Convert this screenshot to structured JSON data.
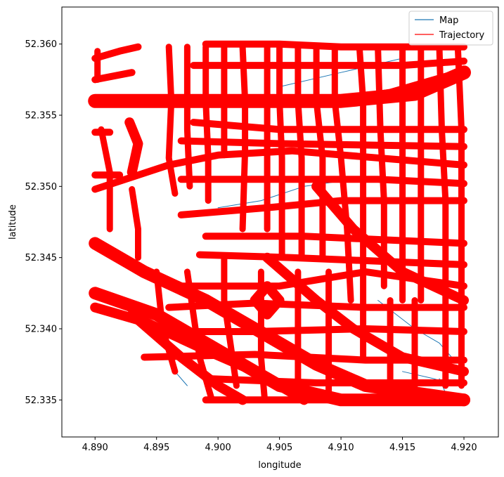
{
  "chart_data": {
    "type": "line",
    "title": "",
    "xlabel": "longitude",
    "ylabel": "latitude",
    "xlim": [
      4.8873,
      4.9228
    ],
    "ylim": [
      52.3324,
      52.3626
    ],
    "x_ticks": [
      4.89,
      4.895,
      4.9,
      4.905,
      4.91,
      4.915,
      4.92
    ],
    "x_tick_labels": [
      "4.890",
      "4.895",
      "4.900",
      "4.905",
      "4.910",
      "4.915",
      "4.920"
    ],
    "y_ticks": [
      52.335,
      52.34,
      52.345,
      52.35,
      52.355,
      52.36
    ],
    "y_tick_labels": [
      "52.335",
      "52.340",
      "52.345",
      "52.350",
      "52.355",
      "52.360"
    ],
    "grid": false,
    "legend_position": "top-right",
    "series": [
      {
        "name": "Map",
        "color": "#1f77b4",
        "segments": [
          [
            [
              4.9,
              52.3485
            ],
            [
              4.9035,
              52.349
            ],
            [
              4.907,
              52.35
            ],
            [
              4.911,
              52.3505
            ]
          ],
          [
            [
              4.905,
              52.357
            ],
            [
              4.91,
              52.358
            ],
            [
              4.915,
              52.359
            ]
          ],
          [
            [
              4.913,
              52.342
            ],
            [
              4.916,
              52.34
            ],
            [
              4.918,
              52.339
            ],
            [
              4.919,
              52.338
            ]
          ],
          [
            [
              4.915,
              52.337
            ],
            [
              4.9175,
              52.3365
            ],
            [
              4.9195,
              52.336
            ]
          ],
          [
            [
              4.896,
              52.338
            ],
            [
              4.8965,
              52.337
            ],
            [
              4.8975,
              52.336
            ]
          ],
          [
            [
              4.918,
              52.3365
            ],
            [
              4.9185,
              52.3355
            ],
            [
              4.9188,
              52.335
            ]
          ]
        ]
      },
      {
        "name": "Trajectory",
        "color": "#ff0000",
        "horizontal_streets": [
          [
            [
              4.89,
              52.356
            ],
            [
              4.9,
              52.356
            ],
            [
              4.91,
              52.356
            ],
            [
              4.916,
              52.3565
            ],
            [
              4.92,
              52.358
            ]
          ],
          [
            [
              4.89,
              52.3498
            ],
            [
              4.896,
              52.3515
            ],
            [
              4.9,
              52.3522
            ],
            [
              4.906,
              52.3525
            ],
            [
              4.92,
              52.3515
            ]
          ],
          [
            [
              4.897,
              52.348
            ],
            [
              4.904,
              52.3485
            ],
            [
              4.91,
              52.349
            ],
            [
              4.92,
              52.349
            ]
          ],
          [
            [
              4.899,
              52.3465
            ],
            [
              4.907,
              52.3465
            ],
            [
              4.92,
              52.346
            ]
          ],
          [
            [
              4.8985,
              52.3452
            ],
            [
              4.906,
              52.345
            ],
            [
              4.92,
              52.3445
            ]
          ],
          [
            [
              4.897,
              52.343
            ],
            [
              4.905,
              52.343
            ],
            [
              4.912,
              52.344
            ],
            [
              4.92,
              52.343
            ]
          ],
          [
            [
              4.896,
              52.3415
            ],
            [
              4.903,
              52.3418
            ],
            [
              4.912,
              52.3415
            ],
            [
              4.92,
              52.3415
            ]
          ],
          [
            [
              4.895,
              52.3398
            ],
            [
              4.903,
              52.3398
            ],
            [
              4.912,
              52.34
            ],
            [
              4.92,
              52.3398
            ]
          ],
          [
            [
              4.894,
              52.338
            ],
            [
              4.903,
              52.3382
            ],
            [
              4.912,
              52.3378
            ],
            [
              4.92,
              52.3378
            ]
          ],
          [
            [
              4.899,
              52.3365
            ],
            [
              4.908,
              52.3362
            ],
            [
              4.92,
              52.3362
            ]
          ],
          [
            [
              4.899,
              52.335
            ],
            [
              4.905,
              52.335
            ],
            [
              4.913,
              52.335
            ],
            [
              4.92,
              52.335
            ]
          ],
          [
            [
              4.899,
              52.36
            ],
            [
              4.905,
              52.36
            ],
            [
              4.91,
              52.3598
            ],
            [
              4.92,
              52.3598
            ]
          ],
          [
            [
              4.898,
              52.3585
            ],
            [
              4.905,
              52.3585
            ],
            [
              4.915,
              52.3585
            ],
            [
              4.92,
              52.3588
            ]
          ],
          [
            [
              4.898,
              52.3545
            ],
            [
              4.905,
              52.354
            ],
            [
              4.915,
              52.354
            ],
            [
              4.92,
              52.354
            ]
          ],
          [
            [
              4.897,
              52.3532
            ],
            [
              4.905,
              52.353
            ],
            [
              4.92,
              52.3528
            ]
          ],
          [
            [
              4.897,
              52.3505
            ],
            [
              4.905,
              52.3505
            ],
            [
              4.913,
              52.3505
            ],
            [
              4.92,
              52.3502
            ]
          ],
          [
            [
              4.89,
              52.3538
            ],
            [
              4.8912,
              52.3538
            ]
          ],
          [
            [
              4.89,
              52.359
            ],
            [
              4.892,
              52.3595
            ],
            [
              4.8935,
              52.3598
            ]
          ],
          [
            [
              4.89,
              52.3575
            ],
            [
              4.893,
              52.358
            ]
          ],
          [
            [
              4.89,
              52.3508
            ],
            [
              4.892,
              52.3508
            ]
          ]
        ],
        "vertical_streets": [
          [
            [
              4.896,
              52.3598
            ],
            [
              4.8962,
              52.356
            ],
            [
              4.896,
              52.352
            ],
            [
              4.8965,
              52.3495
            ]
          ],
          [
            [
              4.8975,
              52.3598
            ],
            [
              4.8975,
              52.354
            ],
            [
              4.8977,
              52.35
            ]
          ],
          [
            [
              4.899,
              52.3598
            ],
            [
              4.899,
              52.356
            ],
            [
              4.8992,
              52.352
            ],
            [
              4.8992,
              52.349
            ]
          ],
          [
            [
              4.9005,
              52.3598
            ],
            [
              4.9005,
              52.356
            ],
            [
              4.9005,
              52.3522
            ]
          ],
          [
            [
              4.902,
              52.3598
            ],
            [
              4.9022,
              52.356
            ],
            [
              4.9022,
              52.3525
            ],
            [
              4.902,
              52.347
            ]
          ],
          [
            [
              4.904,
              52.3598
            ],
            [
              4.904,
              52.356
            ],
            [
              4.904,
              52.352
            ],
            [
              4.904,
              52.347
            ]
          ],
          [
            [
              4.905,
              52.3598
            ],
            [
              4.905,
              52.356
            ],
            [
              4.9052,
              52.352
            ],
            [
              4.9052,
              52.345
            ]
          ],
          [
            [
              4.9065,
              52.3598
            ],
            [
              4.9065,
              52.356
            ],
            [
              4.9068,
              52.352
            ],
            [
              4.9068,
              52.345
            ]
          ],
          [
            [
              4.908,
              52.3598
            ],
            [
              4.908,
              52.356
            ],
            [
              4.9085,
              52.352
            ],
            [
              4.9085,
              52.345
            ]
          ],
          [
            [
              4.9095,
              52.3598
            ],
            [
              4.9095,
              52.356
            ],
            [
              4.91,
              52.352
            ],
            [
              4.9105,
              52.347
            ],
            [
              4.9108,
              52.342
            ]
          ],
          [
            [
              4.9115,
              52.3598
            ],
            [
              4.9118,
              52.356
            ],
            [
              4.9118,
              52.35
            ],
            [
              4.9118,
              52.344
            ],
            [
              4.9118,
              52.338
            ]
          ],
          [
            [
              4.913,
              52.3598
            ],
            [
              4.9132,
              52.354
            ],
            [
              4.9135,
              52.349
            ],
            [
              4.9135,
              52.343
            ]
          ],
          [
            [
              4.915,
              52.3598
            ],
            [
              4.915,
              52.354
            ],
            [
              4.915,
              52.349
            ],
            [
              4.915,
              52.342
            ]
          ],
          [
            [
              4.9165,
              52.3598
            ],
            [
              4.9165,
              52.354
            ],
            [
              4.9165,
              52.349
            ],
            [
              4.9165,
              52.342
            ]
          ],
          [
            [
              4.918,
              52.3598
            ],
            [
              4.9182,
              52.354
            ],
            [
              4.9185,
              52.349
            ],
            [
              4.9185,
              52.342
            ],
            [
              4.9185,
              52.336
            ]
          ],
          [
            [
              4.9195,
              52.3598
            ],
            [
              4.9198,
              52.354
            ],
            [
              4.9198,
              52.348
            ],
            [
              4.9198,
              52.341
            ],
            [
              4.9198,
              52.336
            ]
          ],
          [
            [
              4.895,
              52.344
            ],
            [
              4.8955,
              52.34
            ],
            [
              4.8965,
              52.337
            ]
          ],
          [
            [
              4.8975,
              52.344
            ],
            [
              4.898,
              52.341
            ],
            [
              4.8985,
              52.338
            ],
            [
              4.8995,
              52.335
            ]
          ],
          [
            [
              4.9005,
              52.345
            ],
            [
              4.9005,
              52.342
            ],
            [
              4.901,
              52.339
            ],
            [
              4.9015,
              52.336
            ]
          ],
          [
            [
              4.9035,
              52.344
            ],
            [
              4.9035,
              52.341
            ],
            [
              4.9035,
              52.338
            ],
            [
              4.9038,
              52.335
            ]
          ],
          [
            [
              4.9065,
              52.344
            ],
            [
              4.9065,
              52.341
            ],
            [
              4.9065,
              52.338
            ],
            [
              4.9065,
              52.335
            ]
          ],
          [
            [
              4.909,
              52.344
            ],
            [
              4.909,
              52.341
            ],
            [
              4.909,
              52.338
            ],
            [
              4.909,
              52.335
            ]
          ],
          [
            [
              4.914,
              52.342
            ],
            [
              4.914,
              52.339
            ],
            [
              4.914,
              52.336
            ]
          ],
          [
            [
              4.916,
              52.342
            ],
            [
              4.916,
              52.339
            ],
            [
              4.916,
              52.336
            ]
          ],
          [
            [
              4.8905,
              52.354
            ],
            [
              4.8912,
              52.351
            ],
            [
              4.8912,
              52.347
            ]
          ],
          [
            [
              4.893,
              52.3498
            ],
            [
              4.8935,
              52.347
            ],
            [
              4.8935,
              52.345
            ]
          ],
          [
            [
              4.8902,
              52.3595
            ],
            [
              4.8902,
              52.3575
            ]
          ]
        ],
        "diagonal_streets": [
          [
            [
              4.89,
              52.346
            ],
            [
              4.894,
              52.344
            ],
            [
              4.899,
              52.342
            ],
            [
              4.904,
              52.3395
            ],
            [
              4.908,
              52.3375
            ],
            [
              4.912,
              52.336
            ],
            [
              4.92,
              52.335
            ]
          ],
          [
            [
              4.89,
              52.3425
            ],
            [
              4.895,
              52.341
            ],
            [
              4.9,
              52.3385
            ],
            [
              4.905,
              52.336
            ],
            [
              4.91,
              52.335
            ],
            [
              4.92,
              52.335
            ]
          ],
          [
            [
              4.89,
              52.3415
            ],
            [
              4.894,
              52.3405
            ],
            [
              4.899,
              52.3385
            ],
            [
              4.903,
              52.337
            ],
            [
              4.907,
              52.335
            ]
          ],
          [
            [
              4.893,
              52.341
            ],
            [
              4.897,
              52.338
            ],
            [
              4.9,
              52.336
            ],
            [
              4.902,
              52.335
            ]
          ],
          [
            [
              4.908,
              52.35
            ],
            [
              4.911,
              52.347
            ],
            [
              4.915,
              52.344
            ],
            [
              4.92,
              52.342
            ]
          ],
          [
            [
              4.904,
              52.345
            ],
            [
              4.908,
              52.342
            ],
            [
              4.911,
              52.34
            ],
            [
              4.915,
              52.338
            ],
            [
              4.92,
              52.337
            ]
          ],
          [
            [
              4.91,
              52.356
            ],
            [
              4.914,
              52.3565
            ],
            [
              4.918,
              52.3575
            ],
            [
              4.92,
              52.358
            ]
          ],
          [
            [
              4.893,
              52.351
            ],
            [
              4.8935,
              52.353
            ],
            [
              4.8928,
              52.3545
            ]
          ],
          [
            [
              4.903,
              52.342
            ],
            [
              4.904,
              52.343
            ],
            [
              4.905,
              52.342
            ],
            [
              4.904,
              52.341
            ],
            [
              4.903,
              52.342
            ]
          ]
        ]
      }
    ]
  }
}
